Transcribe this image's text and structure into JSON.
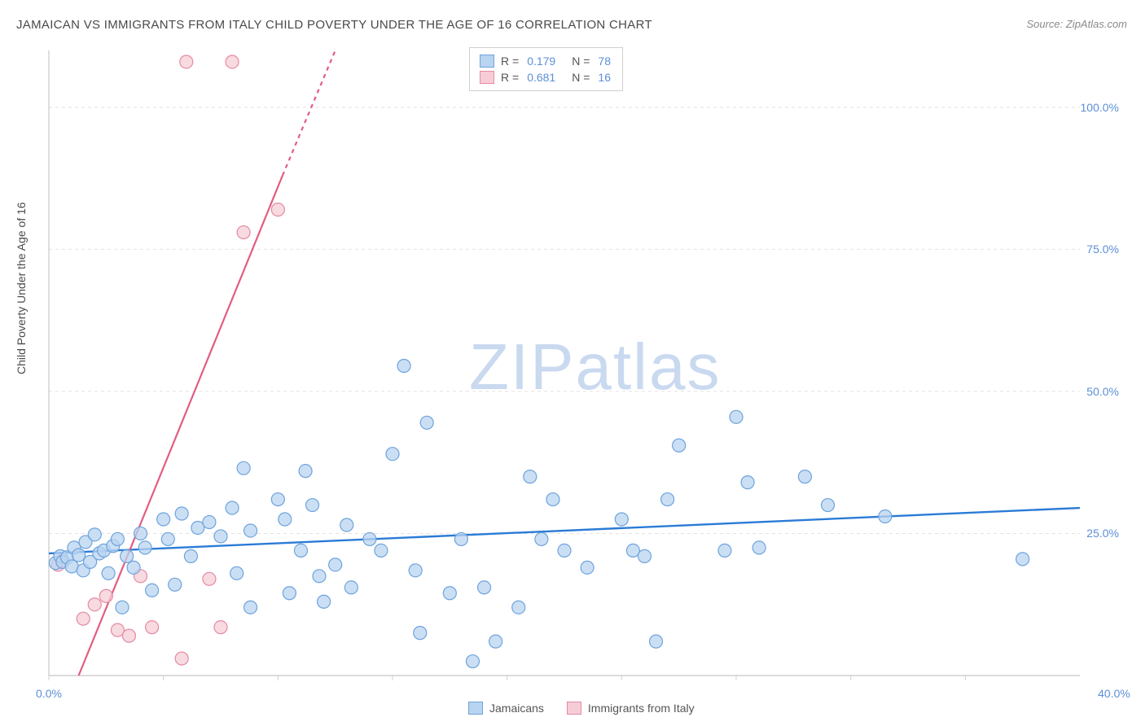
{
  "title": "JAMAICAN VS IMMIGRANTS FROM ITALY CHILD POVERTY UNDER THE AGE OF 16 CORRELATION CHART",
  "source": "Source: ZipAtlas.com",
  "ylabel": "Child Poverty Under the Age of 16",
  "watermark_bold": "ZIP",
  "watermark_light": "atlas",
  "chart": {
    "type": "scatter",
    "background_color": "#ffffff",
    "grid_color": "#e2e2e2",
    "axis_color": "#c8c8c8",
    "tick_color": "#d0d0d0",
    "tick_label_color": "#5b8fd6",
    "xlim": [
      0,
      45
    ],
    "ylim": [
      0,
      110
    ],
    "x_ticks": [
      0,
      5,
      10,
      15,
      20,
      25,
      30,
      35,
      40
    ],
    "x_tick_labels": {
      "0": "0.0%",
      "40": "40.0%"
    },
    "y_ticks": [
      25,
      50,
      75,
      100
    ],
    "y_tick_labels": {
      "25": "25.0%",
      "50": "50.0%",
      "75": "75.0%",
      "100": "100.0%"
    },
    "marker_radius": 8,
    "marker_stroke_width": 1.2,
    "series": [
      {
        "name": "Jamaicans",
        "fill": "#b9d4f0",
        "stroke": "#6da3dd",
        "r_value": "0.179",
        "n_value": "78",
        "trend": {
          "x1": 0,
          "y1": 21.5,
          "x2": 45,
          "y2": 29.5,
          "color": "#2a7bd6",
          "width": 2.4
        },
        "points": [
          [
            0.3,
            19.8
          ],
          [
            0.5,
            21.0
          ],
          [
            0.6,
            20.0
          ],
          [
            0.8,
            20.8
          ],
          [
            1.0,
            19.2
          ],
          [
            1.1,
            22.5
          ],
          [
            1.3,
            21.2
          ],
          [
            1.5,
            18.5
          ],
          [
            1.6,
            23.5
          ],
          [
            1.8,
            20.0
          ],
          [
            2.0,
            24.8
          ],
          [
            2.2,
            21.5
          ],
          [
            2.4,
            22.0
          ],
          [
            2.6,
            18.0
          ],
          [
            2.8,
            22.8
          ],
          [
            3.0,
            24.0
          ],
          [
            3.2,
            12.0
          ],
          [
            3.4,
            21.0
          ],
          [
            3.7,
            19.0
          ],
          [
            4.0,
            25.0
          ],
          [
            4.2,
            22.5
          ],
          [
            4.5,
            15.0
          ],
          [
            5.0,
            27.5
          ],
          [
            5.2,
            24.0
          ],
          [
            5.5,
            16.0
          ],
          [
            5.8,
            28.5
          ],
          [
            6.2,
            21.0
          ],
          [
            6.5,
            26.0
          ],
          [
            7.0,
            27.0
          ],
          [
            7.5,
            24.5
          ],
          [
            8.0,
            29.5
          ],
          [
            8.2,
            18.0
          ],
          [
            8.5,
            36.5
          ],
          [
            8.8,
            12.0
          ],
          [
            10.0,
            31.0
          ],
          [
            10.3,
            27.5
          ],
          [
            10.5,
            14.5
          ],
          [
            11.0,
            22.0
          ],
          [
            11.2,
            36.0
          ],
          [
            11.5,
            30.0
          ],
          [
            11.8,
            17.5
          ],
          [
            12.0,
            13.0
          ],
          [
            12.5,
            19.5
          ],
          [
            13.0,
            26.5
          ],
          [
            13.2,
            15.5
          ],
          [
            14.0,
            24.0
          ],
          [
            14.5,
            22.0
          ],
          [
            15.0,
            39.0
          ],
          [
            15.5,
            54.5
          ],
          [
            16.0,
            18.5
          ],
          [
            16.2,
            7.5
          ],
          [
            16.5,
            44.5
          ],
          [
            17.5,
            14.5
          ],
          [
            18.0,
            24.0
          ],
          [
            18.5,
            2.5
          ],
          [
            19.0,
            15.5
          ],
          [
            19.5,
            6.0
          ],
          [
            20.5,
            12.0
          ],
          [
            21.0,
            35.0
          ],
          [
            21.5,
            24.0
          ],
          [
            22.0,
            31.0
          ],
          [
            22.5,
            22.0
          ],
          [
            23.5,
            19.0
          ],
          [
            25.0,
            27.5
          ],
          [
            25.5,
            22.0
          ],
          [
            26.0,
            21.0
          ],
          [
            26.5,
            6.0
          ],
          [
            27.0,
            31.0
          ],
          [
            27.5,
            40.5
          ],
          [
            29.5,
            22.0
          ],
          [
            30.0,
            45.5
          ],
          [
            30.5,
            34.0
          ],
          [
            31.0,
            22.5
          ],
          [
            33.0,
            35.0
          ],
          [
            34.0,
            30.0
          ],
          [
            36.5,
            28.0
          ],
          [
            42.5,
            20.5
          ],
          [
            8.8,
            25.5
          ]
        ]
      },
      {
        "name": "Immigrants from Italy",
        "fill": "#f6cdd7",
        "stroke": "#e48aa2",
        "r_value": "0.681",
        "n_value": "16",
        "trend": {
          "x1": 1.3,
          "y1": 0,
          "x2": 12.5,
          "y2": 110,
          "color": "#e25d81",
          "width": 2.2,
          "dash_after_x": 10.2,
          "dash_after_y": 88
        },
        "points": [
          [
            0.4,
            19.5
          ],
          [
            0.6,
            20.2
          ],
          [
            1.5,
            10.0
          ],
          [
            2.0,
            12.5
          ],
          [
            2.5,
            14.0
          ],
          [
            3.0,
            8.0
          ],
          [
            3.5,
            7.0
          ],
          [
            4.0,
            17.5
          ],
          [
            4.5,
            8.5
          ],
          [
            5.8,
            3.0
          ],
          [
            6.0,
            108.0
          ],
          [
            7.0,
            17.0
          ],
          [
            8.0,
            108.0
          ],
          [
            8.5,
            78.0
          ],
          [
            10.0,
            82.0
          ],
          [
            7.5,
            8.5
          ]
        ]
      }
    ]
  },
  "legend_top": {
    "r_label": "R =",
    "n_label": "N ="
  },
  "legend_bottom": [
    {
      "label": "Jamaicans",
      "fill": "#b9d4f0",
      "stroke": "#6da3dd"
    },
    {
      "label": "Immigrants from Italy",
      "fill": "#f6cdd7",
      "stroke": "#e48aa2"
    }
  ]
}
